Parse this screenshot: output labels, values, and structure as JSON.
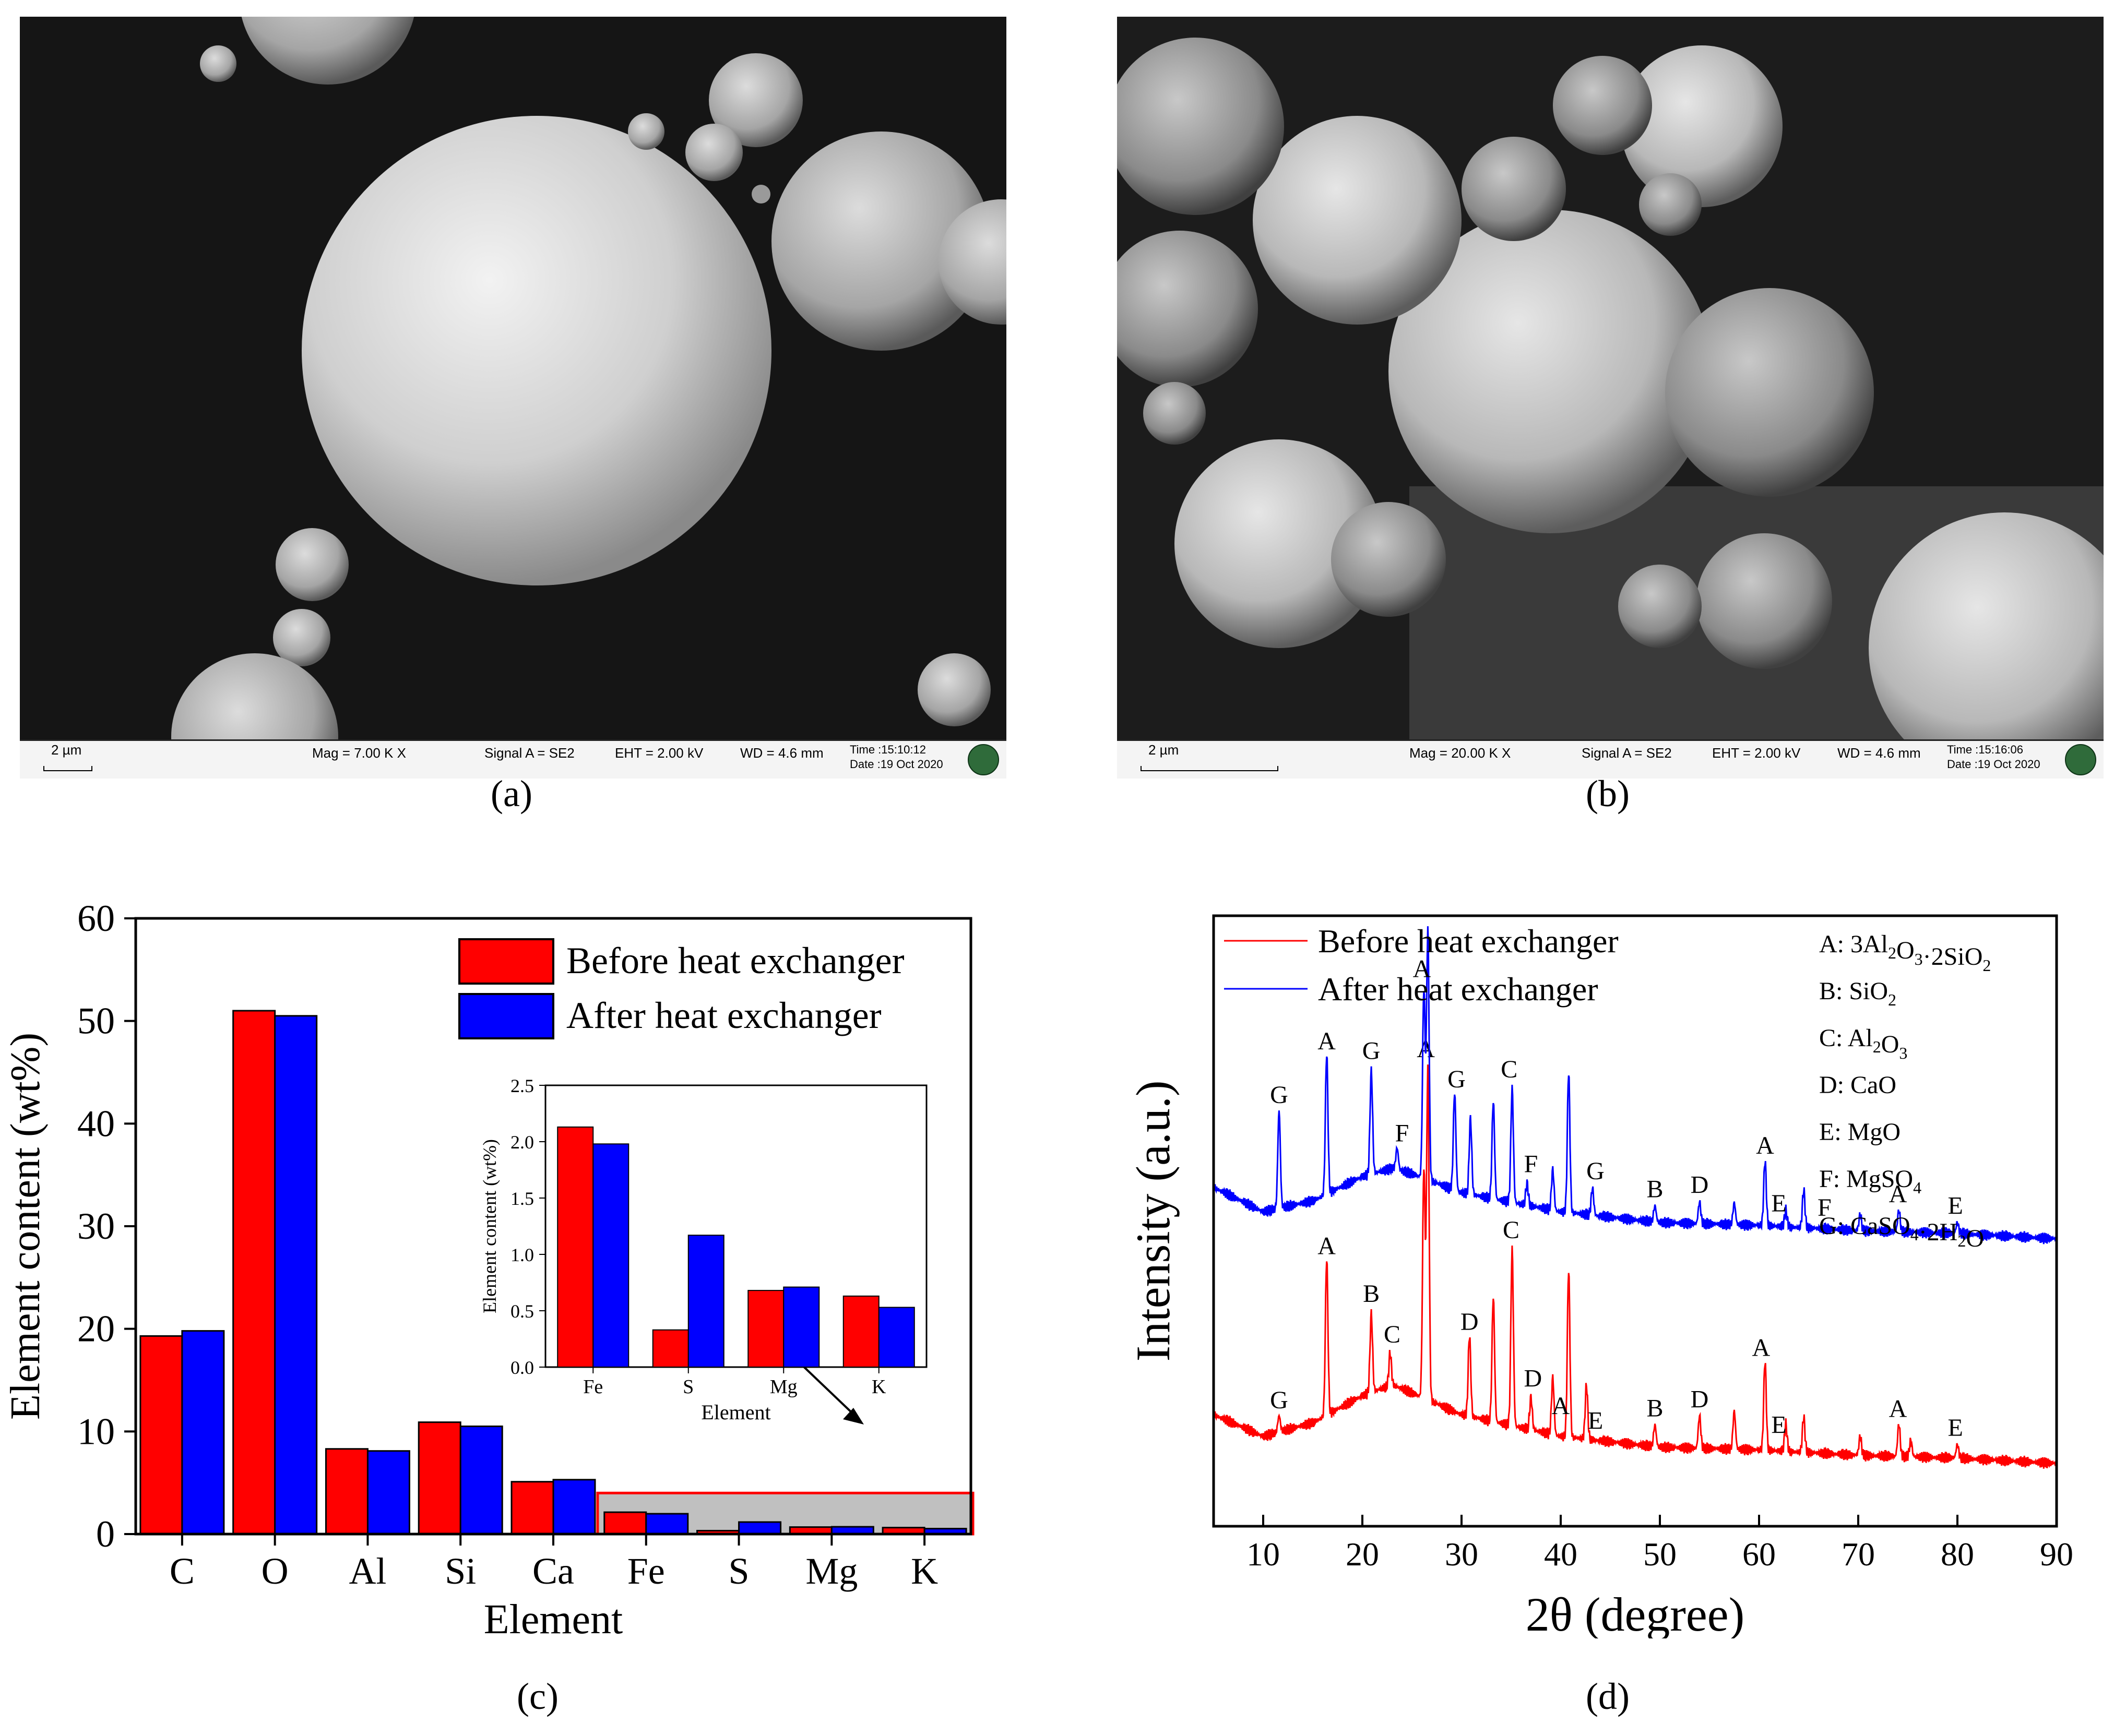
{
  "panels": {
    "a": {
      "caption": "(a)",
      "scale": "2 µm",
      "mag": "Mag =  7.00 K X",
      "signal": "Signal A = SE2",
      "eht": "EHT =  2.00 kV",
      "wd": "WD =  4.6 mm",
      "time": "Time :15:10:12",
      "date": "Date :19 Oct 2020"
    },
    "b": {
      "caption": "(b)",
      "scale": "2 µm",
      "mag": "Mag =  20.00 K X",
      "signal": "Signal A = SE2",
      "eht": "EHT =  2.00 kV",
      "wd": "WD =  4.6 mm",
      "time": "Time :15:16:06",
      "date": "Date :19 Oct 2020"
    },
    "c": {
      "caption": "(c)"
    },
    "d": {
      "caption": "(d)"
    }
  },
  "colors": {
    "before": "#ff0000",
    "after": "#0000ff",
    "highlight_box": "#c0c0c0"
  },
  "chart_data": [
    {
      "type": "bar",
      "categories": [
        "C",
        "O",
        "Al",
        "Si",
        "Ca",
        "Fe",
        "S",
        "Mg",
        "K"
      ],
      "series": [
        {
          "name": "Before heat exchanger",
          "values": [
            19.3,
            51.0,
            8.3,
            10.9,
            5.1,
            2.13,
            0.33,
            0.68,
            0.63
          ]
        },
        {
          "name": "After heat exchanger",
          "values": [
            19.8,
            50.5,
            8.1,
            10.5,
            5.3,
            1.98,
            1.17,
            0.71,
            0.53
          ]
        }
      ],
      "xlabel": "Element",
      "ylabel": "Element content (wt%)",
      "ylim": [
        0,
        60
      ],
      "yticks": [
        0,
        10,
        20,
        30,
        40,
        50,
        60
      ],
      "legend_position": "top-right",
      "inset": {
        "type": "bar",
        "categories": [
          "Fe",
          "S",
          "Mg",
          "K"
        ],
        "series": [
          {
            "name": "Before heat exchanger",
            "values": [
              2.13,
              0.33,
              0.68,
              0.63
            ]
          },
          {
            "name": "After heat exchanger",
            "values": [
              1.98,
              1.17,
              0.71,
              0.53
            ]
          }
        ],
        "xlabel": "Element",
        "ylabel": "Element content (wt%)",
        "ylim": [
          0,
          2.5
        ],
        "yticks": [
          "0.0",
          "0.5",
          "1.0",
          "1.5",
          "2.0",
          "2.5"
        ]
      }
    },
    {
      "type": "line",
      "xlabel": "2θ (degree)",
      "ylabel": "Intensity (a.u.)",
      "xlim": [
        5,
        90
      ],
      "xticks": [
        10,
        20,
        30,
        40,
        50,
        60,
        70,
        80,
        90
      ],
      "legend_position": "top-left",
      "series": [
        {
          "name": "Before heat exchanger",
          "baseline": [
            [
              5,
              0.2
            ],
            [
              10,
              0.12
            ],
            [
              15,
              0.17
            ],
            [
              20,
              0.27
            ],
            [
              23,
              0.31
            ],
            [
              25,
              0.28
            ],
            [
              30,
              0.2
            ],
            [
              40,
              0.12
            ],
            [
              50,
              0.08
            ],
            [
              60,
              0.07
            ],
            [
              70,
              0.05
            ],
            [
              80,
              0.04
            ],
            [
              90,
              0.02
            ]
          ],
          "peaks": [
            [
              11.6,
              0.06
            ],
            [
              16.4,
              0.58
            ],
            [
              20.9,
              0.29
            ],
            [
              22.8,
              0.12
            ],
            [
              26.2,
              0.85
            ],
            [
              26.6,
              1.22
            ],
            [
              30.8,
              0.3
            ],
            [
              33.2,
              0.46
            ],
            [
              35.1,
              0.65
            ],
            [
              37.0,
              0.12
            ],
            [
              39.2,
              0.21
            ],
            [
              40.8,
              0.62
            ],
            [
              42.6,
              0.2
            ],
            [
              49.5,
              0.08
            ],
            [
              54.0,
              0.12
            ],
            [
              57.5,
              0.14
            ],
            [
              60.6,
              0.33
            ],
            [
              62.7,
              0.1
            ],
            [
              64.5,
              0.13
            ],
            [
              70.2,
              0.07
            ],
            [
              74.1,
              0.12
            ],
            [
              75.3,
              0.06
            ],
            [
              80.0,
              0.05
            ]
          ],
          "annotations": [
            [
              "G",
              11.6
            ],
            [
              "A",
              16.4
            ],
            [
              "B",
              20.9
            ],
            [
              "C",
              23.0
            ],
            [
              "A",
              26.4
            ],
            [
              "D",
              30.8
            ],
            [
              "C",
              35.0
            ],
            [
              "D",
              37.2
            ],
            [
              "A",
              40.0
            ],
            [
              "E",
              43.5
            ],
            [
              "B",
              49.5
            ],
            [
              "D",
              54.0
            ],
            [
              "A",
              60.2
            ],
            [
              "E",
              62.0
            ],
            [
              "A",
              74.0
            ],
            [
              "E",
              79.8
            ]
          ]
        },
        {
          "name": "After heat exchanger",
          "baseline": [
            [
              5,
              0.23
            ],
            [
              10,
              0.14
            ],
            [
              15,
              0.18
            ],
            [
              20,
              0.27
            ],
            [
              23,
              0.3
            ],
            [
              25,
              0.28
            ],
            [
              30,
              0.21
            ],
            [
              40,
              0.14
            ],
            [
              50,
              0.1
            ],
            [
              60,
              0.09
            ],
            [
              70,
              0.07
            ],
            [
              80,
              0.06
            ],
            [
              90,
              0.04
            ]
          ],
          "peaks": [
            [
              11.6,
              0.36
            ],
            [
              16.4,
              0.52
            ],
            [
              20.9,
              0.38
            ],
            [
              23.5,
              0.08
            ],
            [
              26.2,
              0.7
            ],
            [
              26.6,
              0.92
            ],
            [
              29.3,
              0.36
            ],
            [
              30.9,
              0.28
            ],
            [
              33.2,
              0.36
            ],
            [
              35.1,
              0.42
            ],
            [
              36.6,
              0.08
            ],
            [
              39.2,
              0.15
            ],
            [
              40.8,
              0.52
            ],
            [
              43.2,
              0.1
            ],
            [
              49.5,
              0.06
            ],
            [
              54.0,
              0.08
            ],
            [
              57.5,
              0.08
            ],
            [
              60.6,
              0.24
            ],
            [
              62.7,
              0.06
            ],
            [
              64.5,
              0.14
            ],
            [
              70.2,
              0.06
            ],
            [
              74.1,
              0.08
            ],
            [
              80.0,
              0.04
            ]
          ],
          "annotations": [
            [
              "G",
              11.6
            ],
            [
              "A",
              16.4
            ],
            [
              "G",
              20.9
            ],
            [
              "F",
              24.0
            ],
            [
              "A",
              26.0
            ],
            [
              "G",
              29.5
            ],
            [
              "C",
              34.8
            ],
            [
              "F",
              37.0
            ],
            [
              "G",
              43.5
            ],
            [
              "B",
              49.5
            ],
            [
              "D",
              54.0
            ],
            [
              "A",
              60.6
            ],
            [
              "E",
              62.0
            ],
            [
              "F",
              66.6
            ],
            [
              "A",
              74.0
            ],
            [
              "E",
              79.8
            ]
          ]
        }
      ],
      "phase_legend": [
        {
          "label": "A:",
          "formula": "3Al<sub>2</sub>O<sub>3</sub>·2SiO<sub>2</sub>"
        },
        {
          "label": "B:",
          "formula": "SiO<sub>2</sub>"
        },
        {
          "label": "C:",
          "formula": "Al<sub>2</sub>O<sub>3</sub>"
        },
        {
          "label": "D:",
          "formula": "CaO"
        },
        {
          "label": "E:",
          "formula": "MgO"
        },
        {
          "label": "F:",
          "formula": "MgSO<sub>4</sub>"
        },
        {
          "label": "G:",
          "formula": "CaSO<sub>4</sub>·2H<sub>2</sub>O"
        }
      ]
    }
  ]
}
